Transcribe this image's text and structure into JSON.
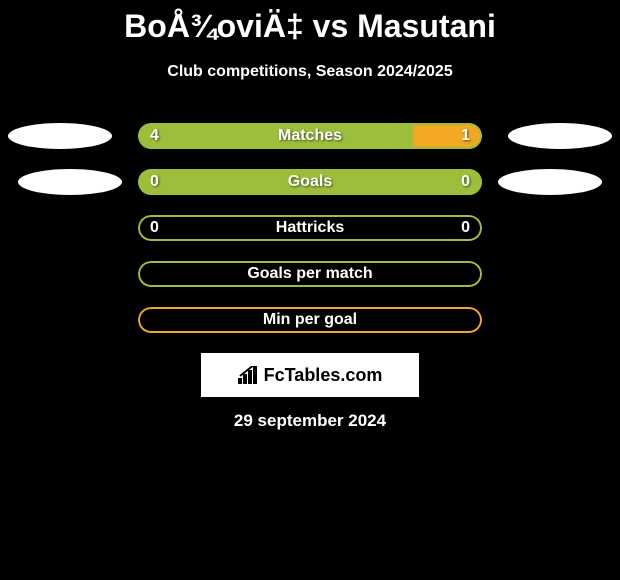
{
  "title": "BoÅ¾oviÄ‡ vs Masutani",
  "subtitle": "Club competitions, Season 2024/2025",
  "colors": {
    "green": "#9cbf3b",
    "orange": "#f2a822",
    "white": "#ffffff",
    "black": "#000000"
  },
  "stats": [
    {
      "label": "Matches",
      "left_value": "4",
      "right_value": "1",
      "show_values": true,
      "left_pct": 80,
      "right_pct": 20,
      "left_color": "#9cbf3b",
      "right_color": "#f2a822",
      "outline_color": "#9cbf3b",
      "show_left_ellipse": true,
      "show_right_ellipse": true,
      "ellipse_class": "1"
    },
    {
      "label": "Goals",
      "left_value": "0",
      "right_value": "0",
      "show_values": true,
      "left_pct": 100,
      "right_pct": 0,
      "left_color": "#9cbf3b",
      "right_color": "#f2a822",
      "outline_color": "#9cbf3b",
      "show_left_ellipse": true,
      "show_right_ellipse": true,
      "ellipse_class": "2"
    },
    {
      "label": "Hattricks",
      "left_value": "0",
      "right_value": "0",
      "show_values": true,
      "left_pct": 0,
      "right_pct": 0,
      "left_color": "#9cbf3b",
      "right_color": "#f2a822",
      "outline_color": "#9cbf3b",
      "show_left_ellipse": false,
      "show_right_ellipse": false
    },
    {
      "label": "Goals per match",
      "left_value": "",
      "right_value": "",
      "show_values": false,
      "left_pct": 0,
      "right_pct": 0,
      "left_color": "#9cbf3b",
      "right_color": "#f2a822",
      "outline_color": "#9cbf3b",
      "show_left_ellipse": false,
      "show_right_ellipse": false
    },
    {
      "label": "Min per goal",
      "left_value": "",
      "right_value": "",
      "show_values": false,
      "left_pct": 0,
      "right_pct": 0,
      "left_color": "#9cbf3b",
      "right_color": "#f2a822",
      "outline_color": "#f2a822",
      "show_left_ellipse": false,
      "show_right_ellipse": false
    }
  ],
  "logo": {
    "text": "FcTables.com"
  },
  "date": "29 september 2024"
}
